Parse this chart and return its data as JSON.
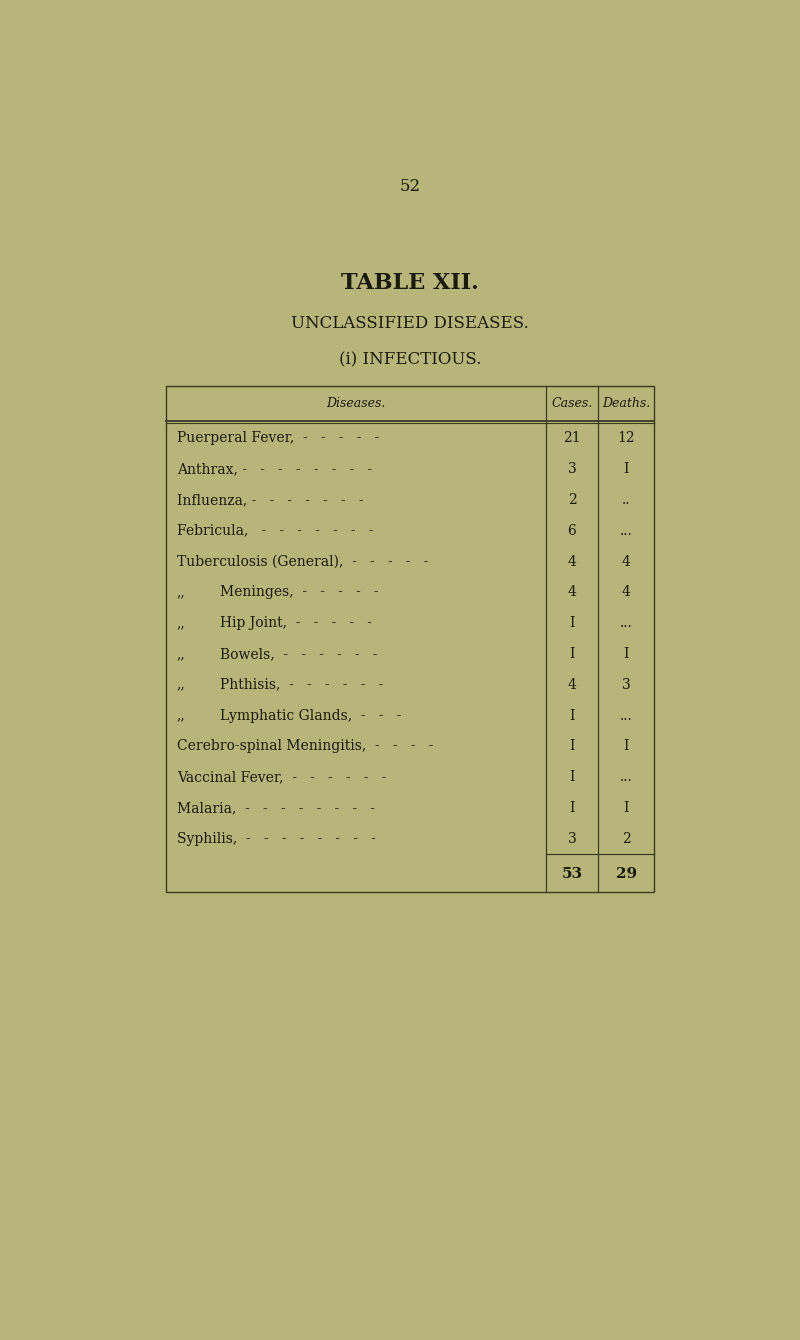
{
  "page_number": "52",
  "title": "TABLE XII.",
  "subtitle": "UNCLASSIFIED DISEASES.",
  "sub_subtitle": "(i) INFECTIOUS.",
  "bg_color": "#b8b57a",
  "col_header": [
    "Diseases.",
    "Cases.",
    "Deaths."
  ],
  "rows": [
    {
      "disease": "Puerperal Fever,  -   -   -   -   -",
      "indent": false,
      "sub_label": "",
      "cases": "21",
      "deaths": "12"
    },
    {
      "disease": "Anthrax, -   -   -   -   -   -   -   -",
      "indent": false,
      "sub_label": "",
      "cases": "3",
      "deaths": "I"
    },
    {
      "disease": "Influenza, -   -   -   -   -   -   -",
      "indent": false,
      "sub_label": "",
      "cases": "2",
      "deaths": ".."
    },
    {
      "disease": "Febricula,   -   -   -   -   -   -   -",
      "indent": false,
      "sub_label": "",
      "cases": "6",
      "deaths": "..."
    },
    {
      "disease": "Tuberculosis (General),  -   -   -   -   -",
      "indent": false,
      "sub_label": "",
      "cases": "4",
      "deaths": "4"
    },
    {
      "disease": "Meninges,  -   -   -   -   -",
      "indent": true,
      "sub_label": ",,",
      "cases": "4",
      "deaths": "4"
    },
    {
      "disease": "Hip Joint,  -   -   -   -   -",
      "indent": true,
      "sub_label": ",,",
      "cases": "I",
      "deaths": "..."
    },
    {
      "disease": "Bowels,  -   -   -   -   -   -",
      "indent": true,
      "sub_label": ",,",
      "cases": "I",
      "deaths": "I"
    },
    {
      "disease": "Phthisis,  -   -   -   -   -   -",
      "indent": true,
      "sub_label": ",,",
      "cases": "4",
      "deaths": "3"
    },
    {
      "disease": "Lymphatic Glands,  -   -   -",
      "indent": true,
      "sub_label": ",,",
      "cases": "I",
      "deaths": "..."
    },
    {
      "disease": "Cerebro-spinal Meningitis,  -   -   -   -",
      "indent": false,
      "sub_label": "",
      "cases": "I",
      "deaths": "I"
    },
    {
      "disease": "Vaccinal Fever,  -   -   -   -   -   -",
      "indent": false,
      "sub_label": "",
      "cases": "I",
      "deaths": "..."
    },
    {
      "disease": "Malaria,  -   -   -   -   -   -   -   -",
      "indent": false,
      "sub_label": "",
      "cases": "I",
      "deaths": "I"
    },
    {
      "disease": "Syphilis,  -   -   -   -   -   -   -   -",
      "indent": false,
      "sub_label": "",
      "cases": "3",
      "deaths": "2"
    }
  ],
  "total_cases": "53",
  "total_deaths": "29",
  "text_color": "#1a1a0a",
  "line_color": "#3a3a20",
  "font_size_title": 16,
  "font_size_subtitle": 12,
  "font_size_header": 9,
  "font_size_body": 10,
  "font_size_page": 12
}
